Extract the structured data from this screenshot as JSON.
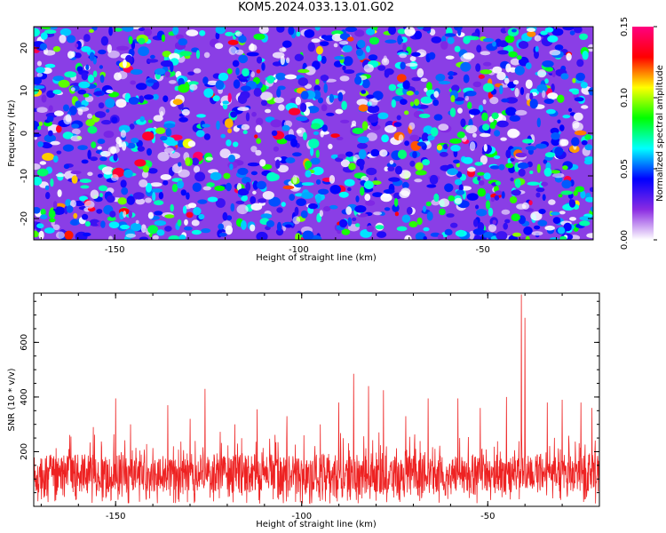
{
  "title": "KOM5.2024.033.13.01.G02",
  "chart_data": [
    {
      "type": "heatmap",
      "xlabel": "Height of straight line (km)",
      "ylabel": "Frequency (Hz)",
      "xlim": [
        -172,
        -20
      ],
      "ylim": [
        -25,
        25
      ],
      "xticks": [
        "-150",
        "-100",
        "-50"
      ],
      "xtick_values": [
        -150,
        -100,
        -50
      ],
      "yticks": [
        "20",
        "10",
        "0",
        "-10",
        "-20"
      ],
      "ytick_values": [
        20,
        10,
        0,
        -10,
        -20
      ],
      "colorbar": {
        "label": "Normalized spectral amplitude",
        "range": [
          0,
          0.15
        ],
        "ticks": [
          "0.00",
          "0.05",
          "0.10",
          "0.15"
        ],
        "tick_values": [
          0,
          0.05,
          0.1,
          0.15
        ],
        "colors": [
          "#ffffff",
          "#8a2be2",
          "#0000ff",
          "#00ffff",
          "#00ff00",
          "#ffff00",
          "#ff0000",
          "#ff0080"
        ]
      },
      "field": "dense speckled spectral amplitude, mostly 0.02–0.06 with scattered peaks up to ~0.15"
    },
    {
      "type": "line",
      "xlabel": "Height of straight line (km)",
      "ylabel": "SNR (10 * v/v)",
      "xlim": [
        -172,
        -20
      ],
      "ylim": [
        0,
        780
      ],
      "xticks": [
        "-150",
        "-100",
        "-50"
      ],
      "xtick_values": [
        -150,
        -100,
        -50
      ],
      "yticks": [
        "200",
        "400",
        "600"
      ],
      "ytick_values": [
        200,
        400,
        600
      ],
      "color": "#ee2222",
      "baseline_mean": 120,
      "peaks": [
        {
          "x": -162,
          "y": 255
        },
        {
          "x": -156,
          "y": 290
        },
        {
          "x": -150,
          "y": 395
        },
        {
          "x": -146,
          "y": 300
        },
        {
          "x": -136,
          "y": 370
        },
        {
          "x": -130,
          "y": 320
        },
        {
          "x": -126,
          "y": 430
        },
        {
          "x": -118,
          "y": 300
        },
        {
          "x": -112,
          "y": 355
        },
        {
          "x": -104,
          "y": 330
        },
        {
          "x": -95,
          "y": 300
        },
        {
          "x": -90,
          "y": 380
        },
        {
          "x": -86,
          "y": 485
        },
        {
          "x": -82,
          "y": 440
        },
        {
          "x": -78,
          "y": 425
        },
        {
          "x": -72,
          "y": 330
        },
        {
          "x": -66,
          "y": 395
        },
        {
          "x": -58,
          "y": 395
        },
        {
          "x": -52,
          "y": 360
        },
        {
          "x": -45,
          "y": 400
        },
        {
          "x": -41,
          "y": 775
        },
        {
          "x": -40,
          "y": 690
        },
        {
          "x": -34,
          "y": 380
        },
        {
          "x": -30,
          "y": 390
        },
        {
          "x": -25,
          "y": 380
        },
        {
          "x": -22,
          "y": 360
        }
      ]
    }
  ]
}
